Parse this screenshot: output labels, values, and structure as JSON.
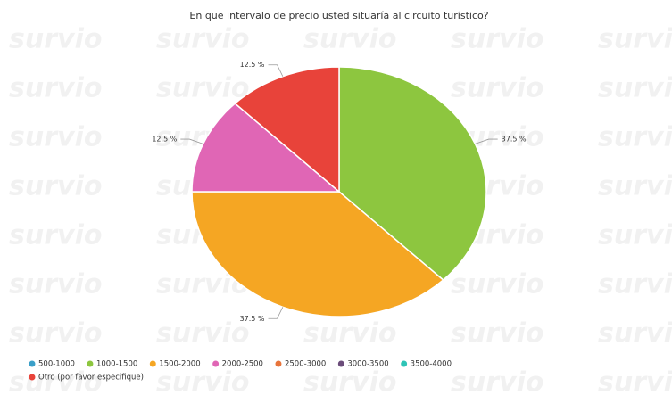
{
  "chart_data": {
    "type": "pie",
    "title": "En que intervalo de precio usted situaría al circuito turístico?",
    "watermark": "survio",
    "categories": [
      "500-1000",
      "1000-1500",
      "1500-2000",
      "2000-2500",
      "2500-3000",
      "3000-3500",
      "3500-4000",
      "Otro (por favor especifique)"
    ],
    "values": [
      0,
      37.5,
      37.5,
      12.5,
      0,
      0,
      0,
      12.5
    ],
    "value_labels": [
      null,
      "37.5 %",
      "37.5 %",
      "12.5 %",
      null,
      null,
      null,
      "12.5 %"
    ],
    "colors": [
      "#3a9fc8",
      "#8dc63f",
      "#f5a623",
      "#e066b5",
      "#e8743b",
      "#6b4c7a",
      "#2ec4b6",
      "#e8433a"
    ],
    "legend": "bottom-left"
  }
}
